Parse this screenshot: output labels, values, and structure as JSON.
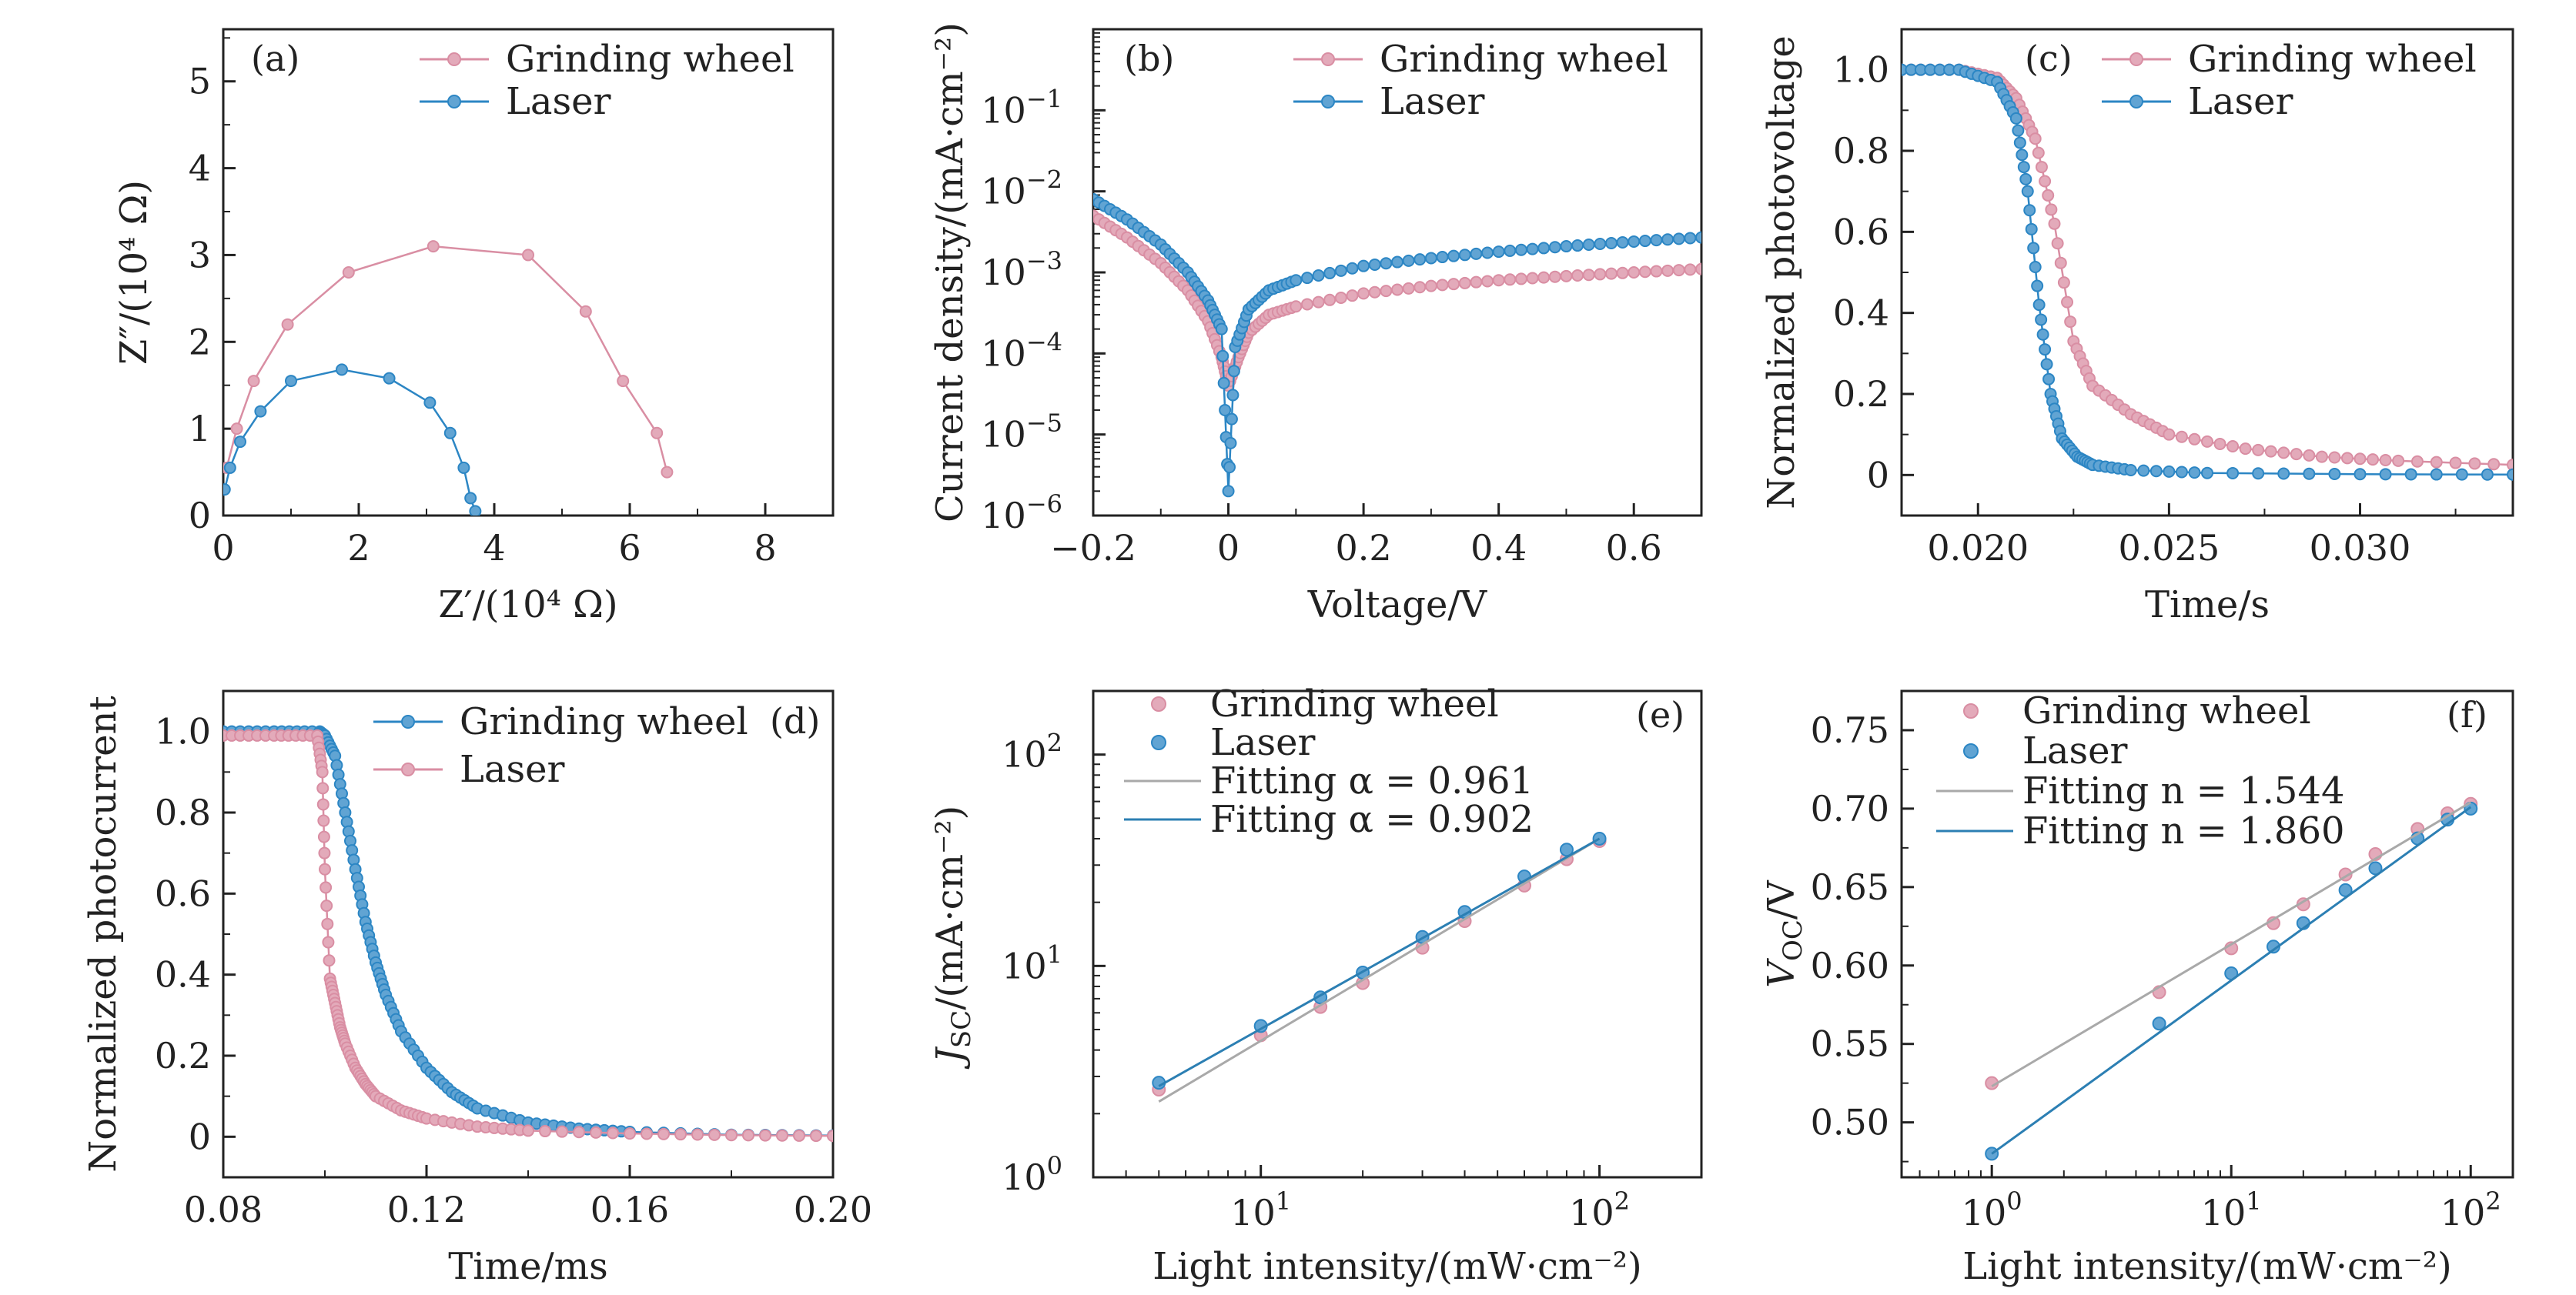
{
  "figure": {
    "colors": {
      "grinding": "#d98ea3",
      "laser": "#2c86c4",
      "fit_grinding": "#a9a9a9",
      "fit_laser": "#2c7fb3"
    },
    "panels": [
      {
        "id": "a",
        "tag": "(a)",
        "xlabel": "Z′/(10⁴ Ω)",
        "ylabel": "Z″/(10⁴ Ω)",
        "xscale": "linear",
        "yscale": "linear",
        "xlim": [
          0,
          9
        ],
        "ylim": [
          0,
          5.6
        ],
        "xticks": [
          0,
          2,
          4,
          6,
          8
        ],
        "xtick_labels": [
          "0",
          "2",
          "4",
          "6",
          "8"
        ],
        "yticks": [
          0,
          1,
          2,
          3,
          4,
          5
        ],
        "ytick_labels": [
          "0",
          "1",
          "2",
          "3",
          "4",
          "5"
        ],
        "legend": {
          "position": "top-right",
          "entries": [
            {
              "label": "Grinding wheel",
              "color": "grinding",
              "kind": "line-marker"
            },
            {
              "label": "Laser",
              "color": "laser",
              "kind": "line-marker"
            }
          ]
        }
      },
      {
        "id": "b",
        "tag": "(b)",
        "xlabel": "Voltage/V",
        "ylabel": "Current density/(mA·cm⁻²)",
        "xscale": "linear",
        "yscale": "log",
        "xlim": [
          -0.2,
          0.7
        ],
        "ylim": [
          1e-06,
          1
        ],
        "xticks": [
          -0.2,
          0,
          0.2,
          0.4,
          0.6
        ],
        "xtick_labels": [
          "−0.2",
          "0",
          "0.2",
          "0.4",
          "0.6"
        ],
        "yticks": [
          1e-06,
          1e-05,
          0.0001,
          0.001,
          0.01,
          0.1
        ],
        "ytick_base": "10",
        "ytick_exponents": [
          "−6",
          "−5",
          "−4",
          "−3",
          "−2",
          "−1"
        ],
        "legend": {
          "position": "top-right",
          "entries": [
            {
              "label": "Grinding wheel",
              "color": "grinding",
              "kind": "line-marker"
            },
            {
              "label": "Laser",
              "color": "laser",
              "kind": "line-marker"
            }
          ]
        }
      },
      {
        "id": "c",
        "tag": "(c)",
        "xlabel": "Time/s",
        "ylabel": "Normalized photovoltage",
        "xscale": "linear",
        "yscale": "linear",
        "xlim": [
          0.018,
          0.034
        ],
        "ylim": [
          -0.1,
          1.1
        ],
        "xticks": [
          0.02,
          0.025,
          0.03
        ],
        "xtick_labels": [
          "0.020",
          "0.025",
          "0.030"
        ],
        "yticks": [
          0,
          0.2,
          0.4,
          0.6,
          0.8,
          1.0
        ],
        "ytick_labels": [
          "0",
          "0.2",
          "0.4",
          "0.6",
          "0.8",
          "1.0"
        ],
        "legend": {
          "position": "top-right",
          "entries": [
            {
              "label": "Grinding wheel",
              "color": "grinding",
              "kind": "line-marker"
            },
            {
              "label": "Laser",
              "color": "laser",
              "kind": "line-marker"
            }
          ]
        }
      },
      {
        "id": "d",
        "tag": "(d)",
        "xlabel": "Time/ms",
        "ylabel": "Normalized photocurrent",
        "xscale": "linear",
        "yscale": "linear",
        "xlim": [
          0.08,
          0.2
        ],
        "ylim": [
          -0.1,
          1.1
        ],
        "xticks": [
          0.08,
          0.12,
          0.16,
          0.2
        ],
        "xtick_labels": [
          "0.08",
          "0.12",
          "0.16",
          "0.20"
        ],
        "yticks": [
          0,
          0.2,
          0.4,
          0.6,
          0.8,
          1.0
        ],
        "ytick_labels": [
          "0",
          "0.2",
          "0.4",
          "0.6",
          "0.8",
          "1.0"
        ],
        "legend": {
          "position": "top-right",
          "entries": [
            {
              "label": "Grinding wheel",
              "color": "laser",
              "kind": "line-marker"
            },
            {
              "label": "Laser",
              "color": "grinding",
              "kind": "line-marker"
            }
          ]
        }
      },
      {
        "id": "e",
        "tag": "(e)",
        "xlabel": "Light intensity/(mW·cm⁻²)",
        "ylabel": "J_SC/(mA·cm⁻²)",
        "xscale": "log",
        "yscale": "log",
        "xlim": [
          3.2,
          200
        ],
        "ylim": [
          1,
          200
        ],
        "xticks": [
          10,
          100
        ],
        "xtick_base": "10",
        "xtick_exponents": [
          "1",
          "2"
        ],
        "yticks": [
          1,
          10,
          100
        ],
        "ytick_base": "10",
        "ytick_exponents": [
          "0",
          "1",
          "2"
        ],
        "legend": {
          "position": "top-left",
          "entries": [
            {
              "label": "Grinding wheel",
              "color": "grinding",
              "kind": "marker"
            },
            {
              "label": "Laser",
              "color": "laser",
              "kind": "marker"
            },
            {
              "label": "Fitting α = 0.961",
              "color": "fit_grinding",
              "kind": "line"
            },
            {
              "label": "Fitting α = 0.902",
              "color": "fit_laser",
              "kind": "line"
            }
          ]
        }
      },
      {
        "id": "f",
        "tag": "(f)",
        "xlabel": "Light intensity/(mW·cm⁻²)",
        "ylabel": "V_OC/V",
        "xscale": "log",
        "yscale": "linear",
        "xlim": [
          0.42,
          150
        ],
        "ylim": [
          0.465,
          0.775
        ],
        "xticks": [
          1,
          10,
          100
        ],
        "xtick_base": "10",
        "xtick_exponents": [
          "0",
          "1",
          "2"
        ],
        "yticks": [
          0.5,
          0.55,
          0.6,
          0.65,
          0.7,
          0.75
        ],
        "ytick_labels": [
          "0.50",
          "0.55",
          "0.60",
          "0.65",
          "0.70",
          "0.75"
        ],
        "legend": {
          "position": "top-left",
          "entries": [
            {
              "label": "Grinding wheel",
              "color": "grinding",
              "kind": "marker"
            },
            {
              "label": "Laser",
              "color": "laser",
              "kind": "marker"
            },
            {
              "label": "Fitting n = 1.544",
              "color": "fit_grinding",
              "kind": "line"
            },
            {
              "label": "Fitting n = 1.860",
              "color": "fit_laser",
              "kind": "line"
            }
          ]
        }
      }
    ]
  },
  "chart_data": [
    {
      "panel": "a",
      "type": "line",
      "xlabel": "Z′/(10⁴ Ω)",
      "ylabel": "Z″/(10⁴ Ω)",
      "xlim": [
        0,
        9
      ],
      "ylim": [
        0,
        5.6
      ],
      "series": [
        {
          "name": "Grinding wheel",
          "x": [
            0.05,
            0.2,
            0.45,
            0.95,
            1.85,
            3.1,
            4.5,
            5.35,
            5.9,
            6.4,
            6.55
          ],
          "y": [
            0.55,
            1.0,
            1.55,
            2.2,
            2.8,
            3.1,
            3.0,
            2.35,
            1.55,
            0.95,
            0.5
          ]
        },
        {
          "name": "Laser",
          "x": [
            0.02,
            0.1,
            0.25,
            0.55,
            1.0,
            1.75,
            2.45,
            3.05,
            3.35,
            3.55,
            3.65,
            3.72
          ],
          "y": [
            0.3,
            0.55,
            0.85,
            1.2,
            1.55,
            1.68,
            1.58,
            1.3,
            0.95,
            0.55,
            0.2,
            0.05
          ]
        }
      ]
    },
    {
      "panel": "b",
      "type": "line",
      "xlabel": "Voltage/V",
      "ylabel": "Current density/(mA·cm⁻²)",
      "xlim": [
        -0.2,
        0.7
      ],
      "ylim": [
        1e-06,
        1
      ],
      "yscale": "log",
      "series": [
        {
          "name": "Grinding wheel",
          "x": [
            -0.2,
            -0.15,
            -0.1,
            -0.06,
            -0.03,
            -0.01,
            0.0,
            0.015,
            0.03,
            0.06,
            0.1,
            0.2,
            0.3,
            0.4,
            0.5,
            0.6,
            0.7
          ],
          "y": [
            0.005,
            0.0027,
            0.0013,
            0.0006,
            0.00025,
            9e-05,
            4e-05,
            9e-05,
            0.00018,
            0.0003,
            0.00038,
            0.00055,
            0.00068,
            0.0008,
            0.0009,
            0.001,
            0.0011
          ]
        },
        {
          "name": "Laser",
          "x": [
            -0.2,
            -0.15,
            -0.1,
            -0.06,
            -0.03,
            -0.01,
            0.0,
            0.01,
            0.03,
            0.06,
            0.1,
            0.2,
            0.3,
            0.4,
            0.5,
            0.6,
            0.7
          ],
          "y": [
            0.008,
            0.0045,
            0.0022,
            0.001,
            0.00045,
            0.0002,
            2e-06,
            0.00012,
            0.00035,
            0.0006,
            0.0008,
            0.0012,
            0.0015,
            0.0018,
            0.0021,
            0.0024,
            0.0027
          ]
        }
      ]
    },
    {
      "panel": "c",
      "type": "line",
      "xlabel": "Time/s",
      "ylabel": "Normalized photovoltage",
      "xlim": [
        0.018,
        0.034
      ],
      "ylim": [
        -0.1,
        1.1
      ],
      "series": [
        {
          "name": "Grinding wheel",
          "x": [
            0.018,
            0.0195,
            0.0205,
            0.021,
            0.0215,
            0.022,
            0.0225,
            0.023,
            0.024,
            0.025,
            0.027,
            0.029,
            0.031,
            0.034
          ],
          "y": [
            1.0,
            1.0,
            0.98,
            0.93,
            0.83,
            0.62,
            0.33,
            0.22,
            0.15,
            0.1,
            0.065,
            0.045,
            0.035,
            0.025
          ]
        },
        {
          "name": "Laser",
          "x": [
            0.018,
            0.0195,
            0.0205,
            0.021,
            0.0213,
            0.0216,
            0.0219,
            0.0222,
            0.0226,
            0.023,
            0.024,
            0.026,
            0.03,
            0.034
          ],
          "y": [
            1.0,
            1.0,
            0.97,
            0.88,
            0.7,
            0.42,
            0.2,
            0.09,
            0.045,
            0.025,
            0.012,
            0.005,
            0.002,
            0.001
          ]
        }
      ]
    },
    {
      "panel": "d",
      "type": "line",
      "xlabel": "Time/ms",
      "ylabel": "Normalized photocurrent",
      "xlim": [
        0.08,
        0.2
      ],
      "ylim": [
        -0.1,
        1.1
      ],
      "series": [
        {
          "name": "Grinding wheel",
          "x": [
            0.08,
            0.09,
            0.099,
            0.1,
            0.102,
            0.104,
            0.106,
            0.108,
            0.11,
            0.112,
            0.115,
            0.12,
            0.125,
            0.13,
            0.14,
            0.15,
            0.16,
            0.18,
            0.2
          ],
          "y": [
            1.0,
            1.0,
            1.0,
            0.99,
            0.94,
            0.8,
            0.66,
            0.53,
            0.43,
            0.35,
            0.26,
            0.17,
            0.11,
            0.07,
            0.035,
            0.02,
            0.012,
            0.005,
            0.003
          ]
        },
        {
          "name": "Laser",
          "x": [
            0.08,
            0.09,
            0.0985,
            0.0995,
            0.1,
            0.101,
            0.102,
            0.103,
            0.104,
            0.106,
            0.108,
            0.11,
            0.115,
            0.12,
            0.13,
            0.14,
            0.16,
            0.18,
            0.2
          ],
          "y": [
            0.99,
            0.99,
            0.99,
            0.9,
            0.66,
            0.39,
            0.33,
            0.27,
            0.23,
            0.17,
            0.13,
            0.1,
            0.065,
            0.045,
            0.025,
            0.015,
            0.008,
            0.004,
            0.002
          ]
        }
      ]
    },
    {
      "panel": "e",
      "type": "scatter",
      "xlabel": "Light intensity/(mW·cm⁻²)",
      "ylabel": "J_SC/(mA·cm⁻²)",
      "xlim": [
        3.2,
        200
      ],
      "ylim": [
        1,
        200
      ],
      "xscale": "log",
      "yscale": "log",
      "x": [
        5,
        10,
        15,
        20,
        30,
        40,
        60,
        80,
        100
      ],
      "series": [
        {
          "name": "Grinding wheel",
          "values": [
            2.6,
            4.7,
            6.4,
            8.3,
            12.2,
            16.3,
            24.0,
            32.0,
            39.0
          ]
        },
        {
          "name": "Laser",
          "values": [
            2.8,
            5.2,
            7.1,
            9.3,
            13.7,
            18.0,
            26.5,
            35.5,
            40.0
          ]
        },
        {
          "name": "Fitting α = 0.961",
          "kind": "fit",
          "exponent": 0.961,
          "x": [
            5,
            100
          ],
          "values": [
            2.28,
            40.0
          ]
        },
        {
          "name": "Fitting α = 0.902",
          "kind": "fit",
          "exponent": 0.902,
          "x": [
            5,
            100
          ],
          "values": [
            2.7,
            40.0
          ]
        }
      ]
    },
    {
      "panel": "f",
      "type": "scatter",
      "xlabel": "Light intensity/(mW·cm⁻²)",
      "ylabel": "V_OC/V",
      "xlim": [
        0.42,
        150
      ],
      "ylim": [
        0.465,
        0.775
      ],
      "xscale": "log",
      "x": [
        1,
        5,
        10,
        15,
        20,
        30,
        40,
        60,
        80,
        100
      ],
      "series": [
        {
          "name": "Grinding wheel",
          "values": [
            0.525,
            0.583,
            0.611,
            0.627,
            0.639,
            0.658,
            0.671,
            0.687,
            0.697,
            0.703
          ]
        },
        {
          "name": "Laser",
          "values": [
            0.48,
            0.563,
            0.595,
            0.612,
            0.627,
            0.648,
            0.662,
            0.681,
            0.693,
            0.7
          ]
        },
        {
          "name": "Fitting n = 1.544",
          "kind": "fit",
          "x": [
            1,
            100
          ],
          "values": [
            0.523,
            0.704
          ]
        },
        {
          "name": "Fitting n = 1.860",
          "kind": "fit",
          "x": [
            1,
            100
          ],
          "values": [
            0.48,
            0.701
          ]
        }
      ]
    }
  ]
}
